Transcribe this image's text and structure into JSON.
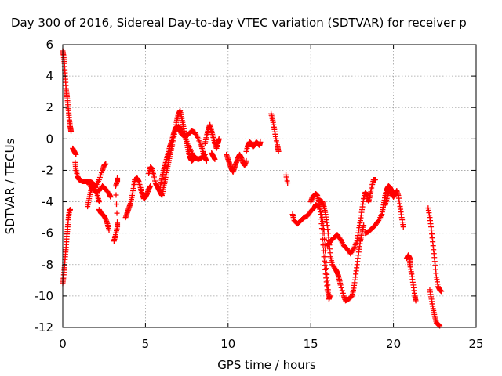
{
  "chart_data": {
    "type": "scatter",
    "title": "Day 300 of 2016, Sidereal Day-to-day VTEC variation (SDTVAR) for receiver p",
    "xlabel": "GPS time / hours",
    "ylabel": "SDTVAR / TECUs",
    "xlim": [
      0,
      25
    ],
    "ylim": [
      -12,
      6
    ],
    "xticks": [
      "0",
      "5",
      "10",
      "15",
      "20",
      "25"
    ],
    "yticks": [
      "6",
      "4",
      "2",
      "0",
      "-2",
      "-4",
      "-6",
      "-8",
      "-10",
      "-12"
    ],
    "grid": true,
    "marker": "+",
    "color": "#ff0000",
    "segments": [
      [
        [
          0.0,
          5.6
        ],
        [
          0.05,
          5.3
        ],
        [
          0.1,
          4.8
        ],
        [
          0.15,
          4.0
        ],
        [
          0.2,
          3.2
        ],
        [
          0.25,
          2.8
        ],
        [
          0.3,
          2.3
        ],
        [
          0.35,
          1.8
        ],
        [
          0.4,
          1.2
        ],
        [
          0.45,
          0.8
        ],
        [
          0.5,
          0.5
        ]
      ],
      [
        [
          0.0,
          -9.2
        ],
        [
          0.05,
          -8.8
        ],
        [
          0.1,
          -8.2
        ],
        [
          0.15,
          -7.5
        ],
        [
          0.2,
          -6.9
        ],
        [
          0.25,
          -6.2
        ],
        [
          0.3,
          -5.6
        ],
        [
          0.35,
          -5.0
        ],
        [
          0.4,
          -4.6
        ],
        [
          0.45,
          -4.5
        ]
      ],
      [
        [
          0.6,
          -0.6
        ],
        [
          0.7,
          -0.8
        ],
        [
          0.8,
          -1.0
        ]
      ],
      [
        [
          0.75,
          -1.5
        ],
        [
          0.8,
          -2.0
        ],
        [
          0.9,
          -2.4
        ],
        [
          1.0,
          -2.6
        ],
        [
          1.2,
          -2.7
        ],
        [
          1.4,
          -2.7
        ],
        [
          1.6,
          -2.7
        ],
        [
          1.8,
          -2.8
        ],
        [
          2.0,
          -3.0
        ],
        [
          2.2,
          -2.6
        ],
        [
          2.4,
          -2.0
        ],
        [
          2.5,
          -1.7
        ],
        [
          2.6,
          -1.6
        ]
      ],
      [
        [
          1.5,
          -4.3
        ],
        [
          1.6,
          -3.8
        ],
        [
          1.7,
          -3.3
        ],
        [
          1.8,
          -3.0
        ],
        [
          1.9,
          -2.9
        ],
        [
          2.0,
          -3.1
        ],
        [
          2.1,
          -3.6
        ],
        [
          2.2,
          -4.0
        ]
      ],
      [
        [
          1.6,
          -2.9
        ],
        [
          1.8,
          -3.2
        ],
        [
          2.0,
          -3.4
        ],
        [
          2.2,
          -3.3
        ],
        [
          2.4,
          -3.0
        ],
        [
          2.6,
          -3.2
        ],
        [
          2.8,
          -3.5
        ],
        [
          2.9,
          -3.7
        ]
      ],
      [
        [
          2.2,
          -4.5
        ],
        [
          2.3,
          -4.7
        ],
        [
          2.4,
          -4.8
        ],
        [
          2.5,
          -4.9
        ],
        [
          2.6,
          -5.1
        ],
        [
          2.7,
          -5.4
        ],
        [
          2.8,
          -5.8
        ]
      ],
      [
        [
          3.1,
          -6.5
        ],
        [
          3.2,
          -6.1
        ],
        [
          3.3,
          -5.6
        ],
        [
          3.3,
          -5.3
        ],
        [
          3.2,
          -3.0
        ],
        [
          3.3,
          -2.7
        ],
        [
          3.3,
          -2.5
        ]
      ],
      [
        [
          3.8,
          -5.0
        ],
        [
          3.9,
          -4.7
        ],
        [
          4.0,
          -4.4
        ],
        [
          4.1,
          -4.1
        ],
        [
          4.2,
          -3.6
        ],
        [
          4.3,
          -3.0
        ],
        [
          4.35,
          -2.6
        ],
        [
          4.5,
          -2.5
        ],
        [
          4.6,
          -2.7
        ],
        [
          4.7,
          -3.1
        ],
        [
          4.8,
          -3.5
        ],
        [
          4.9,
          -3.8
        ],
        [
          5.0,
          -3.7
        ],
        [
          5.1,
          -3.5
        ],
        [
          5.2,
          -3.2
        ],
        [
          5.3,
          -3.0
        ]
      ],
      [
        [
          5.2,
          -2.2
        ],
        [
          5.3,
          -1.8
        ],
        [
          5.4,
          -1.9
        ],
        [
          5.5,
          -2.3
        ],
        [
          5.6,
          -2.8
        ],
        [
          5.7,
          -3.0
        ],
        [
          5.8,
          -3.2
        ],
        [
          5.9,
          -3.4
        ],
        [
          6.0,
          -3.6
        ],
        [
          6.1,
          -3.1
        ],
        [
          6.2,
          -2.6
        ],
        [
          6.3,
          -2.0
        ],
        [
          6.4,
          -1.5
        ],
        [
          6.5,
          -1.0
        ],
        [
          6.6,
          -0.5
        ],
        [
          6.7,
          0.0
        ],
        [
          6.8,
          0.6
        ],
        [
          6.9,
          1.2
        ],
        [
          7.0,
          1.6
        ],
        [
          7.1,
          1.8
        ],
        [
          7.2,
          1.3
        ],
        [
          7.3,
          0.8
        ],
        [
          7.4,
          0.2
        ],
        [
          7.5,
          -0.3
        ],
        [
          7.6,
          -0.8
        ],
        [
          7.7,
          -1.2
        ],
        [
          7.8,
          -1.4
        ],
        [
          7.9,
          -1.3
        ]
      ],
      [
        [
          5.9,
          -3.0
        ],
        [
          6.0,
          -2.5
        ],
        [
          6.1,
          -2.0
        ],
        [
          6.2,
          -1.6
        ],
        [
          6.3,
          -1.2
        ],
        [
          6.4,
          -0.8
        ],
        [
          6.5,
          -0.4
        ],
        [
          6.6,
          -0.1
        ],
        [
          6.7,
          0.3
        ],
        [
          6.8,
          0.6
        ],
        [
          6.9,
          0.8
        ],
        [
          7.0,
          0.6
        ],
        [
          7.2,
          0.3
        ],
        [
          7.4,
          0.2
        ],
        [
          7.6,
          0.3
        ],
        [
          7.8,
          0.5
        ],
        [
          8.0,
          0.4
        ],
        [
          8.2,
          0.0
        ],
        [
          8.4,
          -0.5
        ],
        [
          8.5,
          -0.9
        ],
        [
          8.6,
          -1.2
        ],
        [
          8.7,
          -1.4
        ]
      ],
      [
        [
          7.0,
          0.8
        ],
        [
          7.2,
          0.6
        ],
        [
          7.4,
          0.1
        ],
        [
          7.6,
          -0.4
        ],
        [
          7.8,
          -0.9
        ],
        [
          8.0,
          -1.2
        ],
        [
          8.2,
          -1.3
        ],
        [
          8.4,
          -1.2
        ],
        [
          8.6,
          -1.0
        ]
      ],
      [
        [
          8.6,
          -0.3
        ],
        [
          8.7,
          0.2
        ],
        [
          8.8,
          0.6
        ],
        [
          8.9,
          0.9
        ],
        [
          9.0,
          0.5
        ],
        [
          9.1,
          0.1
        ],
        [
          9.2,
          -0.3
        ],
        [
          9.3,
          -0.6
        ],
        [
          9.4,
          -0.2
        ],
        [
          9.45,
          0.0
        ]
      ],
      [
        [
          9.0,
          -0.9
        ],
        [
          9.1,
          -1.1
        ],
        [
          9.2,
          -1.3
        ]
      ],
      [
        [
          9.9,
          -1.0
        ],
        [
          10.0,
          -1.3
        ],
        [
          10.1,
          -1.6
        ],
        [
          10.2,
          -1.9
        ],
        [
          10.3,
          -2.1
        ],
        [
          10.4,
          -1.8
        ],
        [
          10.5,
          -1.5
        ],
        [
          10.6,
          -1.2
        ],
        [
          10.7,
          -1.0
        ],
        [
          10.8,
          -1.2
        ],
        [
          10.9,
          -1.5
        ],
        [
          11.0,
          -1.7
        ],
        [
          11.1,
          -1.4
        ]
      ],
      [
        [
          11.1,
          -0.8
        ],
        [
          11.2,
          -0.4
        ],
        [
          11.3,
          -0.2
        ],
        [
          11.4,
          -0.3
        ],
        [
          11.5,
          -0.5
        ],
        [
          11.6,
          -0.4
        ],
        [
          11.7,
          -0.2
        ],
        [
          11.8,
          -0.3
        ],
        [
          11.9,
          -0.4
        ],
        [
          11.95,
          -0.2
        ]
      ],
      [
        [
          12.6,
          1.6
        ],
        [
          12.7,
          1.2
        ],
        [
          12.8,
          0.6
        ],
        [
          12.9,
          0.0
        ],
        [
          13.0,
          -0.5
        ],
        [
          13.05,
          -0.8
        ]
      ],
      [
        [
          13.5,
          -2.3
        ],
        [
          13.6,
          -2.8
        ]
      ],
      [
        [
          13.9,
          -4.8
        ],
        [
          14.0,
          -5.2
        ],
        [
          14.2,
          -5.4
        ],
        [
          14.4,
          -5.2
        ],
        [
          14.6,
          -5.0
        ],
        [
          14.8,
          -4.9
        ],
        [
          15.0,
          -4.6
        ],
        [
          15.2,
          -4.4
        ],
        [
          15.3,
          -4.2
        ],
        [
          15.5,
          -4.3
        ],
        [
          15.7,
          -5.0
        ],
        [
          15.8,
          -6.0
        ],
        [
          15.9,
          -7.5
        ],
        [
          16.0,
          -9.0
        ],
        [
          16.1,
          -10.2
        ],
        [
          16.15,
          -10.0
        ]
      ],
      [
        [
          15.0,
          -4.0
        ],
        [
          15.1,
          -3.7
        ],
        [
          15.3,
          -3.5
        ],
        [
          15.4,
          -3.6
        ],
        [
          15.5,
          -4.0
        ],
        [
          15.6,
          -4.8
        ],
        [
          15.7,
          -6.0
        ],
        [
          15.8,
          -7.5
        ],
        [
          15.9,
          -8.6
        ],
        [
          16.0,
          -9.6
        ],
        [
          16.1,
          -10.0
        ]
      ],
      [
        [
          15.5,
          -3.9
        ],
        [
          15.7,
          -4.0
        ],
        [
          15.8,
          -4.3
        ],
        [
          15.9,
          -4.8
        ],
        [
          16.0,
          -5.5
        ],
        [
          16.1,
          -6.5
        ],
        [
          16.2,
          -7.5
        ],
        [
          16.3,
          -8.0
        ],
        [
          16.5,
          -8.3
        ],
        [
          16.6,
          -8.5
        ],
        [
          16.7,
          -8.8
        ],
        [
          16.8,
          -9.3
        ],
        [
          17.0,
          -10.0
        ],
        [
          17.1,
          -10.3
        ],
        [
          17.3,
          -10.2
        ],
        [
          17.5,
          -10.0
        ],
        [
          17.6,
          -9.5
        ],
        [
          17.7,
          -8.8
        ],
        [
          17.8,
          -8.0
        ],
        [
          17.9,
          -7.2
        ],
        [
          18.0,
          -6.5
        ],
        [
          18.1,
          -6.0
        ],
        [
          18.2,
          -5.5
        ]
      ],
      [
        [
          16.0,
          -6.8
        ],
        [
          16.2,
          -6.5
        ],
        [
          16.4,
          -6.3
        ],
        [
          16.6,
          -6.1
        ],
        [
          16.8,
          -6.4
        ],
        [
          17.0,
          -6.8
        ],
        [
          17.2,
          -7.0
        ],
        [
          17.4,
          -7.3
        ],
        [
          17.6,
          -7.0
        ],
        [
          17.8,
          -6.5
        ],
        [
          17.9,
          -5.8
        ],
        [
          18.0,
          -5.2
        ],
        [
          18.1,
          -4.5
        ],
        [
          18.2,
          -3.8
        ],
        [
          18.3,
          -3.4
        ],
        [
          18.4,
          -3.6
        ],
        [
          18.5,
          -4.0
        ],
        [
          18.6,
          -3.5
        ],
        [
          18.7,
          -3.0
        ],
        [
          18.8,
          -2.6
        ],
        [
          18.9,
          -2.6
        ]
      ],
      [
        [
          18.3,
          -6.0
        ],
        [
          18.5,
          -5.9
        ],
        [
          18.7,
          -5.7
        ],
        [
          18.9,
          -5.5
        ],
        [
          19.1,
          -5.2
        ],
        [
          19.3,
          -4.8
        ],
        [
          19.4,
          -4.2
        ],
        [
          19.5,
          -3.6
        ],
        [
          19.6,
          -3.2
        ],
        [
          19.7,
          -3.0
        ],
        [
          19.8,
          -3.1
        ],
        [
          19.9,
          -3.3
        ],
        [
          20.0,
          -3.5
        ]
      ],
      [
        [
          19.5,
          -4.2
        ],
        [
          19.6,
          -3.8
        ],
        [
          19.7,
          -3.4
        ],
        [
          19.8,
          -3.3
        ],
        [
          19.9,
          -3.5
        ],
        [
          20.0,
          -3.7
        ],
        [
          20.1,
          -3.5
        ],
        [
          20.2,
          -3.3
        ],
        [
          20.3,
          -3.6
        ],
        [
          20.4,
          -4.3
        ],
        [
          20.5,
          -5.0
        ],
        [
          20.6,
          -5.6
        ]
      ],
      [
        [
          20.8,
          -7.6
        ],
        [
          20.9,
          -7.4
        ],
        [
          21.0,
          -7.6
        ],
        [
          21.0,
          -8.0
        ],
        [
          21.1,
          -8.6
        ],
        [
          21.2,
          -9.3
        ],
        [
          21.3,
          -10.0
        ],
        [
          21.35,
          -10.3
        ]
      ],
      [
        [
          22.1,
          -4.4
        ],
        [
          22.2,
          -5.0
        ],
        [
          22.3,
          -5.8
        ],
        [
          22.4,
          -6.8
        ],
        [
          22.5,
          -7.8
        ],
        [
          22.6,
          -8.8
        ],
        [
          22.7,
          -9.4
        ],
        [
          22.8,
          -9.6
        ],
        [
          22.9,
          -9.7
        ]
      ],
      [
        [
          22.2,
          -9.6
        ],
        [
          22.3,
          -10.2
        ],
        [
          22.4,
          -10.8
        ],
        [
          22.5,
          -11.3
        ],
        [
          22.6,
          -11.7
        ],
        [
          22.7,
          -11.8
        ],
        [
          22.8,
          -11.9
        ]
      ]
    ]
  }
}
